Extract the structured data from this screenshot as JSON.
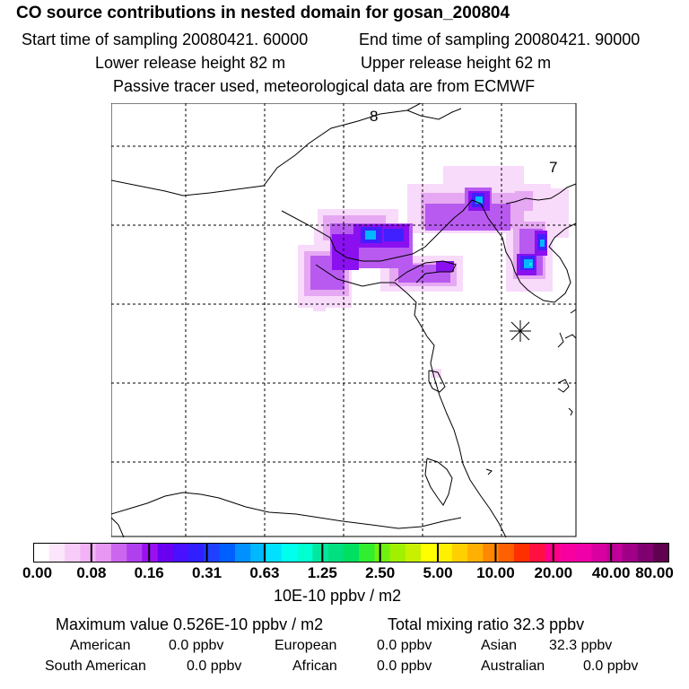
{
  "title": "CO  source contributions in nested domain for gosan_200804",
  "sampling": {
    "start": "Start time of sampling 20080421. 60000",
    "end": "End time of sampling 20080421. 90000"
  },
  "release": {
    "lower": "Lower release height   82 m",
    "upper": "Upper release height   62 m"
  },
  "tracer_note": "Passive tracer used, meteorological data are from ECMWF",
  "map_labels": {
    "a": "8",
    "b": "7"
  },
  "colorbar": {
    "ticks": [
      "0.00",
      "0.08",
      "0.16",
      "0.31",
      "0.63",
      "1.25",
      "2.50",
      "5.00",
      "10.00",
      "20.00",
      "40.00",
      "80.00"
    ],
    "unit": "10E-10 ppbv / m2",
    "colors": [
      "#ffffff",
      "#fce6fc",
      "#f8ccf8",
      "#f3b2f6",
      "#e897f2",
      "#cc66ee",
      "#b040ee",
      "#9a10f2",
      "#6a00f0",
      "#4810ff",
      "#3020ff",
      "#2040ff",
      "#0060ff",
      "#0090ff",
      "#00b8ff",
      "#00e0ff",
      "#00ffee",
      "#00ffd0",
      "#00e8a0",
      "#00e080",
      "#00e060",
      "#30ee30",
      "#70f010",
      "#a0f000",
      "#c8f000",
      "#ffff00",
      "#fff000",
      "#ffd000",
      "#ffb000",
      "#ff8800",
      "#ff6000",
      "#ff3000",
      "#ff1040",
      "#ff0088",
      "#f800a0",
      "#f000a8",
      "#d800a0",
      "#c00098",
      "#a00088",
      "#800070",
      "#600050"
    ]
  },
  "summary": {
    "maximum": "Maximum value  0.526E-10 ppbv / m2",
    "total": "Total mixing ratio       32.3 ppbv"
  },
  "regions": [
    {
      "name": "American",
      "value": "0.0 ppbv"
    },
    {
      "name": "European",
      "value": "0.0 ppbv"
    },
    {
      "name": "Asian",
      "value": "32.3 ppbv"
    },
    {
      "name": "South American",
      "value": "0.0 ppbv"
    },
    {
      "name": "African",
      "value": "0.0 ppbv"
    },
    {
      "name": "Australian",
      "value": "0.0 ppbv"
    }
  ]
}
